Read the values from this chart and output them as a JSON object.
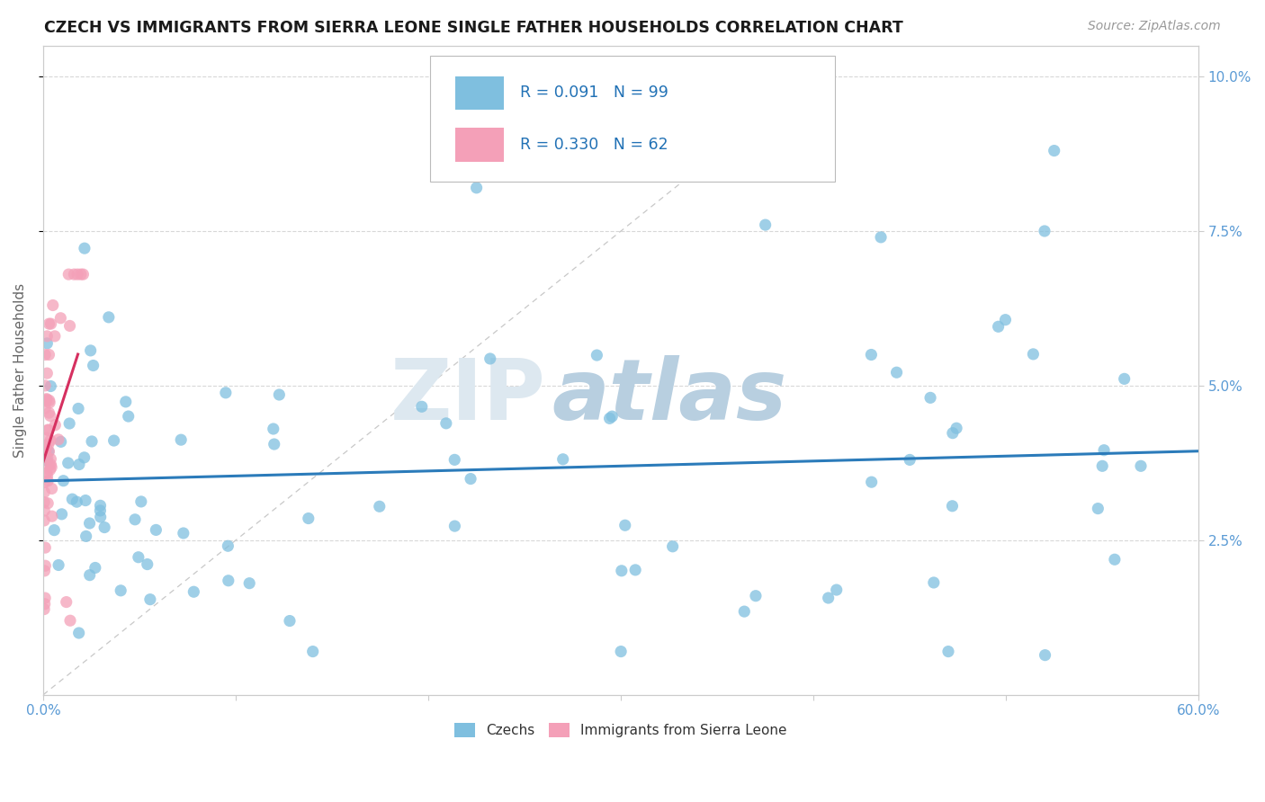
{
  "title": "CZECH VS IMMIGRANTS FROM SIERRA LEONE SINGLE FATHER HOUSEHOLDS CORRELATION CHART",
  "source": "Source: ZipAtlas.com",
  "ylabel": "Single Father Households",
  "xlim": [
    0.0,
    0.6
  ],
  "ylim": [
    0.0,
    0.105
  ],
  "yticks": [
    0.025,
    0.05,
    0.075,
    0.1
  ],
  "ytick_labels": [
    "2.5%",
    "5.0%",
    "7.5%",
    "10.0%"
  ],
  "color_czech": "#7fbfdf",
  "color_sierra": "#f4a0b8",
  "color_trendline_czech": "#2b7bba",
  "color_trendline_sierra": "#d63060",
  "background_color": "#ffffff",
  "watermark_zip_color": "#dde8f0",
  "watermark_atlas_color": "#b8cfe0"
}
